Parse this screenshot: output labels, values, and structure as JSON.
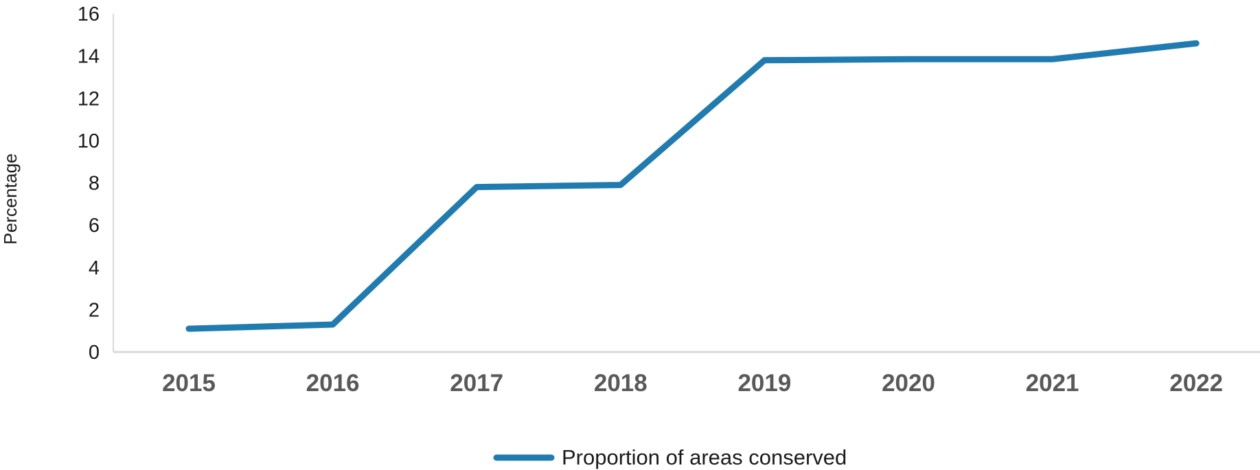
{
  "chart_data": {
    "type": "line",
    "title": "",
    "xlabel": "",
    "ylabel": "Percentage",
    "categories": [
      "2015",
      "2016",
      "2017",
      "2018",
      "2019",
      "2020",
      "2021",
      "2022"
    ],
    "series": [
      {
        "name": "Proportion of areas conserved",
        "values": [
          1.1,
          1.3,
          7.8,
          7.9,
          13.8,
          13.85,
          13.85,
          14.6
        ],
        "color": "#1f7bb0"
      }
    ],
    "ylim": [
      0,
      16
    ],
    "yticks": [
      "0",
      "2",
      "4",
      "6",
      "8",
      "10",
      "12",
      "14",
      "16"
    ],
    "grid": false,
    "legend_position": "bottom-center"
  }
}
